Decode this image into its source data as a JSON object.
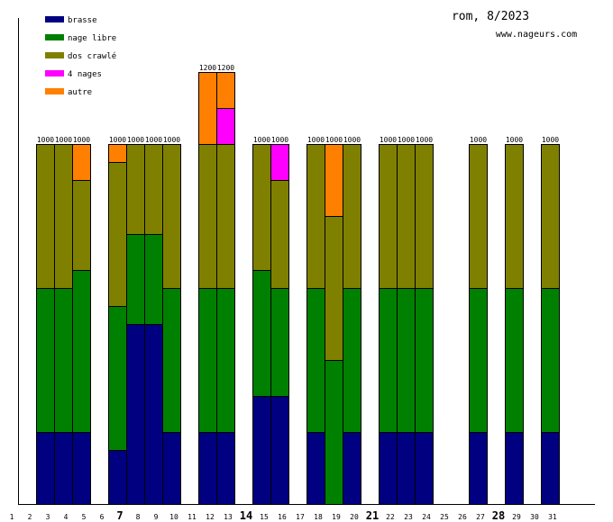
{
  "chart_data": {
    "type": "bar",
    "stacked": true,
    "title": "rom, 8/2023",
    "subtitle": "www.nageurs.com",
    "xlabel": "",
    "ylabel": "",
    "ylim": [
      0,
      1350
    ],
    "legend_position": "top-left",
    "categories": [
      "1",
      "2",
      "3",
      "4",
      "5",
      "6",
      "7",
      "8",
      "9",
      "10",
      "11",
      "12",
      "13",
      "14",
      "15",
      "16",
      "17",
      "18",
      "19",
      "20",
      "21",
      "22",
      "23",
      "24",
      "25",
      "26",
      "27",
      "28",
      "29",
      "30",
      "31"
    ],
    "bold_categories": [
      "7",
      "14",
      "21",
      "28"
    ],
    "series": [
      {
        "name": "brasse",
        "color": "#000080",
        "values": [
          0,
          200,
          200,
          200,
          0,
          150,
          500,
          500,
          200,
          0,
          200,
          200,
          0,
          300,
          300,
          0,
          200,
          0,
          200,
          0,
          200,
          200,
          200,
          0,
          0,
          200,
          0,
          200,
          0,
          200,
          0
        ]
      },
      {
        "name": "nage libre",
        "color": "#008000",
        "values": [
          0,
          400,
          400,
          450,
          0,
          400,
          250,
          250,
          400,
          0,
          400,
          400,
          0,
          350,
          300,
          0,
          400,
          400,
          400,
          0,
          400,
          400,
          400,
          0,
          0,
          400,
          0,
          400,
          0,
          400,
          0
        ]
      },
      {
        "name": "dos crawlé",
        "color": "#808000",
        "values": [
          0,
          400,
          400,
          250,
          0,
          400,
          250,
          250,
          400,
          0,
          400,
          400,
          0,
          350,
          300,
          0,
          400,
          400,
          400,
          0,
          400,
          400,
          400,
          0,
          0,
          400,
          0,
          400,
          0,
          400,
          0
        ]
      },
      {
        "name": "4 nages",
        "color": "#ff00ff",
        "values": [
          0,
          0,
          0,
          0,
          0,
          0,
          0,
          0,
          0,
          0,
          0,
          100,
          0,
          0,
          100,
          0,
          0,
          0,
          0,
          0,
          0,
          0,
          0,
          0,
          0,
          0,
          0,
          0,
          0,
          0,
          0
        ]
      },
      {
        "name": "autre",
        "color": "#ff8000",
        "values": [
          0,
          0,
          0,
          100,
          0,
          50,
          0,
          0,
          0,
          0,
          200,
          100,
          0,
          0,
          0,
          0,
          0,
          200,
          0,
          0,
          0,
          0,
          0,
          0,
          0,
          0,
          0,
          0,
          0,
          0,
          0
        ]
      }
    ],
    "totals": [
      "",
      "1000",
      "1000",
      "1000",
      "",
      "1000",
      "1000",
      "1000",
      "1000",
      "",
      "1200",
      "1200",
      "",
      "1000",
      "1000",
      "",
      "1000",
      "1000",
      "1000",
      "",
      "1000",
      "1000",
      "1000",
      "",
      "",
      "1000",
      "",
      "1000",
      "",
      "1000",
      ""
    ]
  }
}
